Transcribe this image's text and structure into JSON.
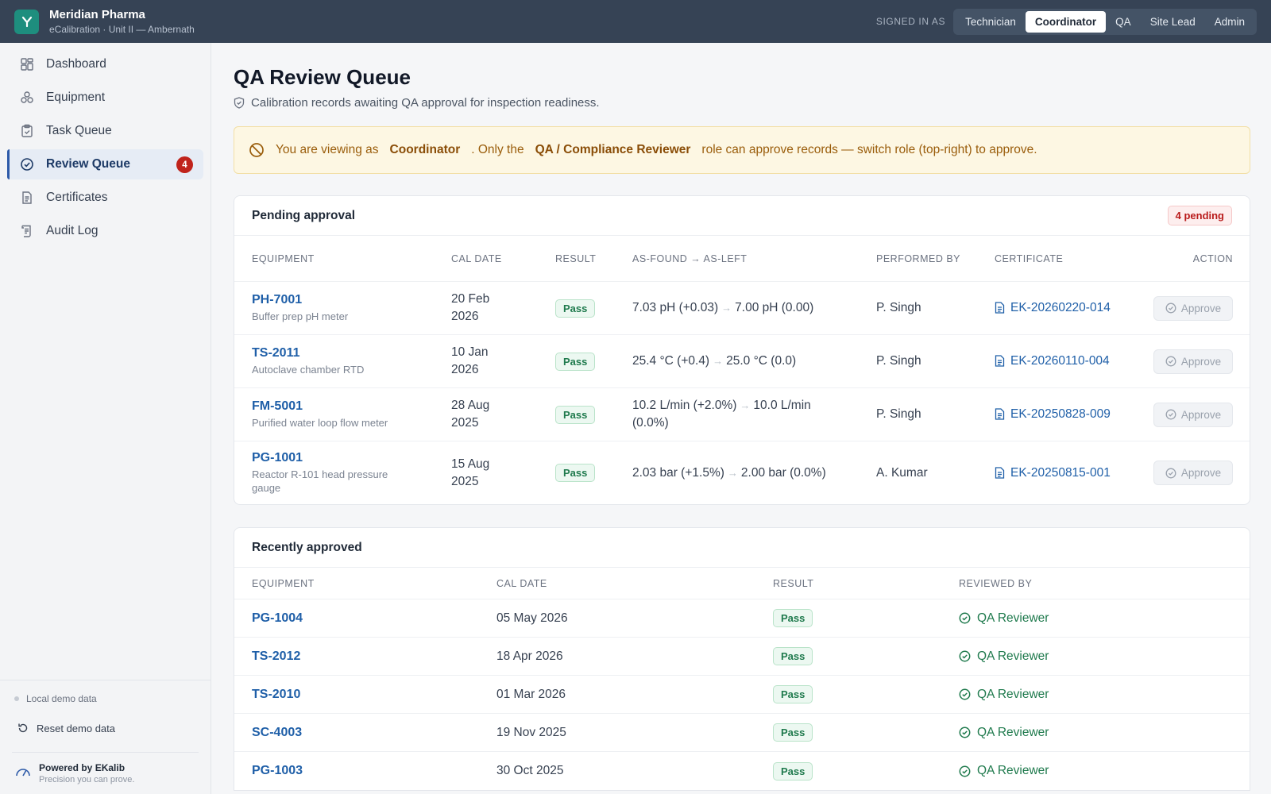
{
  "app": {
    "name": "Meridian Pharma",
    "subtitle": "eCalibration · Unit II — Ambernath",
    "logo_icon": "flask-icon"
  },
  "roles": {
    "label": "SIGNED IN AS",
    "options": [
      "Technician",
      "Coordinator",
      "QA",
      "Site Lead",
      "Admin"
    ],
    "active": "Coordinator"
  },
  "sidebar": {
    "items": [
      {
        "label": "Dashboard",
        "icon": "grid-icon"
      },
      {
        "label": "Equipment",
        "icon": "equipment-icon"
      },
      {
        "label": "Task Queue",
        "icon": "clipboard-icon"
      },
      {
        "label": "Review Queue",
        "icon": "check-circle-icon",
        "badge": "4",
        "active": true
      },
      {
        "label": "Certificates",
        "icon": "document-icon"
      },
      {
        "label": "Audit Log",
        "icon": "audit-icon"
      }
    ],
    "footer": {
      "demo_label": "Local demo data",
      "reset_label": "Reset demo data",
      "powered_title": "Powered by EKalib",
      "powered_sub": "Precision you can prove."
    }
  },
  "page": {
    "title": "QA Review Queue",
    "subtitle": "Calibration records awaiting QA approval for inspection readiness."
  },
  "alert": {
    "part1": "You are viewing as",
    "role": "Coordinator",
    "part2": ". Only the",
    "required_role": "QA / Compliance Reviewer",
    "part3": "role can approve records — switch role (top-right) to approve."
  },
  "pending": {
    "title": "Pending approval",
    "badge": "4 pending",
    "headers": {
      "equipment": "EQUIPMENT",
      "cal_date": "CAL DATE",
      "result": "RESULT",
      "asfound": "AS-FOUND → AS-LEFT",
      "performed_by": "PERFORMED BY",
      "certificate": "CERTIFICATE",
      "action": "ACTION"
    },
    "rows": [
      {
        "id": "PH-7001",
        "desc": "Buffer prep pH meter",
        "date": "20 Feb 2026",
        "result": "Pass",
        "found": "7.03 pH (+0.03)",
        "left": "7.00 pH (0.00)",
        "by": "P. Singh",
        "cert": "EK-20260220-014",
        "action": "Approve"
      },
      {
        "id": "TS-2011",
        "desc": "Autoclave chamber RTD",
        "date": "10 Jan 2026",
        "result": "Pass",
        "found": "25.4 °C (+0.4)",
        "left": "25.0 °C (0.0)",
        "by": "P. Singh",
        "cert": "EK-20260110-004",
        "action": "Approve"
      },
      {
        "id": "FM-5001",
        "desc": "Purified water loop flow meter",
        "date": "28 Aug 2025",
        "result": "Pass",
        "found": "10.2 L/min (+2.0%)",
        "left": "10.0 L/min (0.0%)",
        "by": "P. Singh",
        "cert": "EK-20250828-009",
        "action": "Approve"
      },
      {
        "id": "PG-1001",
        "desc": "Reactor R-101 head pressure gauge",
        "date": "15 Aug 2025",
        "result": "Pass",
        "found": "2.03 bar (+1.5%)",
        "left": "2.00 bar (0.0%)",
        "by": "A. Kumar",
        "cert": "EK-20250815-001",
        "action": "Approve"
      }
    ]
  },
  "approved": {
    "title": "Recently approved",
    "headers": {
      "equipment": "EQUIPMENT",
      "cal_date": "CAL DATE",
      "result": "RESULT",
      "reviewed_by": "REVIEWED BY"
    },
    "rows": [
      {
        "id": "PG-1004",
        "date": "05 May 2026",
        "result": "Pass",
        "reviewer": "QA Reviewer"
      },
      {
        "id": "TS-2012",
        "date": "18 Apr 2026",
        "result": "Pass",
        "reviewer": "QA Reviewer"
      },
      {
        "id": "TS-2010",
        "date": "01 Mar 2026",
        "result": "Pass",
        "reviewer": "QA Reviewer"
      },
      {
        "id": "SC-4003",
        "date": "19 Nov 2025",
        "result": "Pass",
        "reviewer": "QA Reviewer"
      },
      {
        "id": "PG-1003",
        "date": "30 Oct 2025",
        "result": "Pass",
        "reviewer": "QA Reviewer"
      }
    ]
  },
  "colors": {
    "topbar": "#364355",
    "accent": "#1f5fa8",
    "pass": "#1f7a4d",
    "danger": "#c0231b",
    "warning": "#9a5d0b"
  }
}
